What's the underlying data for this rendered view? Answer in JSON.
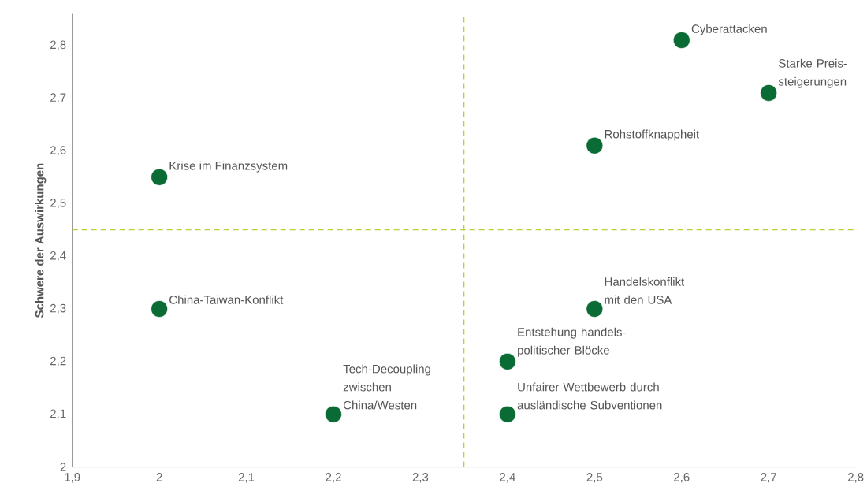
{
  "chart_data": {
    "type": "scatter",
    "ylabel": "Schwere der Auswirkungen",
    "x": [
      2.6,
      2.7,
      2.5,
      2.0,
      2.0,
      2.5,
      2.4,
      2.2,
      2.4
    ],
    "series": [
      {
        "color": "#0b6b35",
        "values": [
          2.81,
          2.71,
          2.61,
          2.55,
          2.3,
          2.3,
          2.2,
          2.1,
          2.1
        ]
      }
    ],
    "marker": "circle",
    "xlim": [
      1.9,
      2.8
    ],
    "ylim": [
      2,
      2.86
    ],
    "xticks": [
      {
        "value": 1.9,
        "label": "1,9"
      },
      2,
      {
        "value": 2.1,
        "label": "2,1"
      },
      {
        "value": 2.2,
        "label": "2,2"
      },
      {
        "value": 2.3,
        "label": "2,3"
      },
      {
        "value": 2.4,
        "label": "2,4"
      },
      {
        "value": 2.5,
        "label": "2,5"
      },
      {
        "value": 2.6,
        "label": "2,6"
      },
      {
        "value": 2.7,
        "label": "2,7"
      },
      {
        "value": 2.8,
        "label": "2,8"
      }
    ],
    "yticks": [
      2,
      {
        "value": 2.1,
        "label": "2,1"
      },
      {
        "value": 2.2,
        "label": "2,2"
      },
      {
        "value": 2.3,
        "label": "2,3"
      },
      {
        "value": 2.4,
        "label": "2,4"
      },
      {
        "value": 2.5,
        "label": "2,5"
      },
      {
        "value": 2.6,
        "label": "2,6"
      },
      {
        "value": 2.7,
        "label": "2,7"
      },
      {
        "value": 2.8,
        "label": "2,8"
      }
    ],
    "ref_lines": [
      {
        "axis": "x",
        "value": 2.35,
        "color": "#b5d334",
        "line_style": "dashed"
      },
      {
        "axis": "y",
        "value": 2.45,
        "color": "#b5d334",
        "line_style": "dashed"
      }
    ],
    "annotations": [
      {
        "text": "Cyberattacken",
        "x": 2.6,
        "y": 2.81
      },
      {
        "text": "Starke Preis- steigerungen",
        "x": 2.7,
        "y": 2.71
      },
      {
        "text": "Rohstoffknappheit",
        "x": 2.5,
        "y": 2.61
      },
      {
        "text": "Krise im Finanzsystem",
        "x": 2.0,
        "y": 2.55
      },
      {
        "text": "China-Taiwan-Konflikt",
        "x": 2.0,
        "y": 2.3
      },
      {
        "text": "Handelskonflikt mit den USA",
        "x": 2.5,
        "y": 2.3
      },
      {
        "text": "Entstehung handels- politischer Blöcke",
        "x": 2.4,
        "y": 2.2
      },
      {
        "text": "Tech-Decoupling zwischen China/Westen",
        "x": 2.2,
        "y": 2.1
      },
      {
        "text": "Unfairer Wettbewerb durch ausländische Subventionen",
        "x": 2.4,
        "y": 2.1
      }
    ],
    "grid": false
  }
}
